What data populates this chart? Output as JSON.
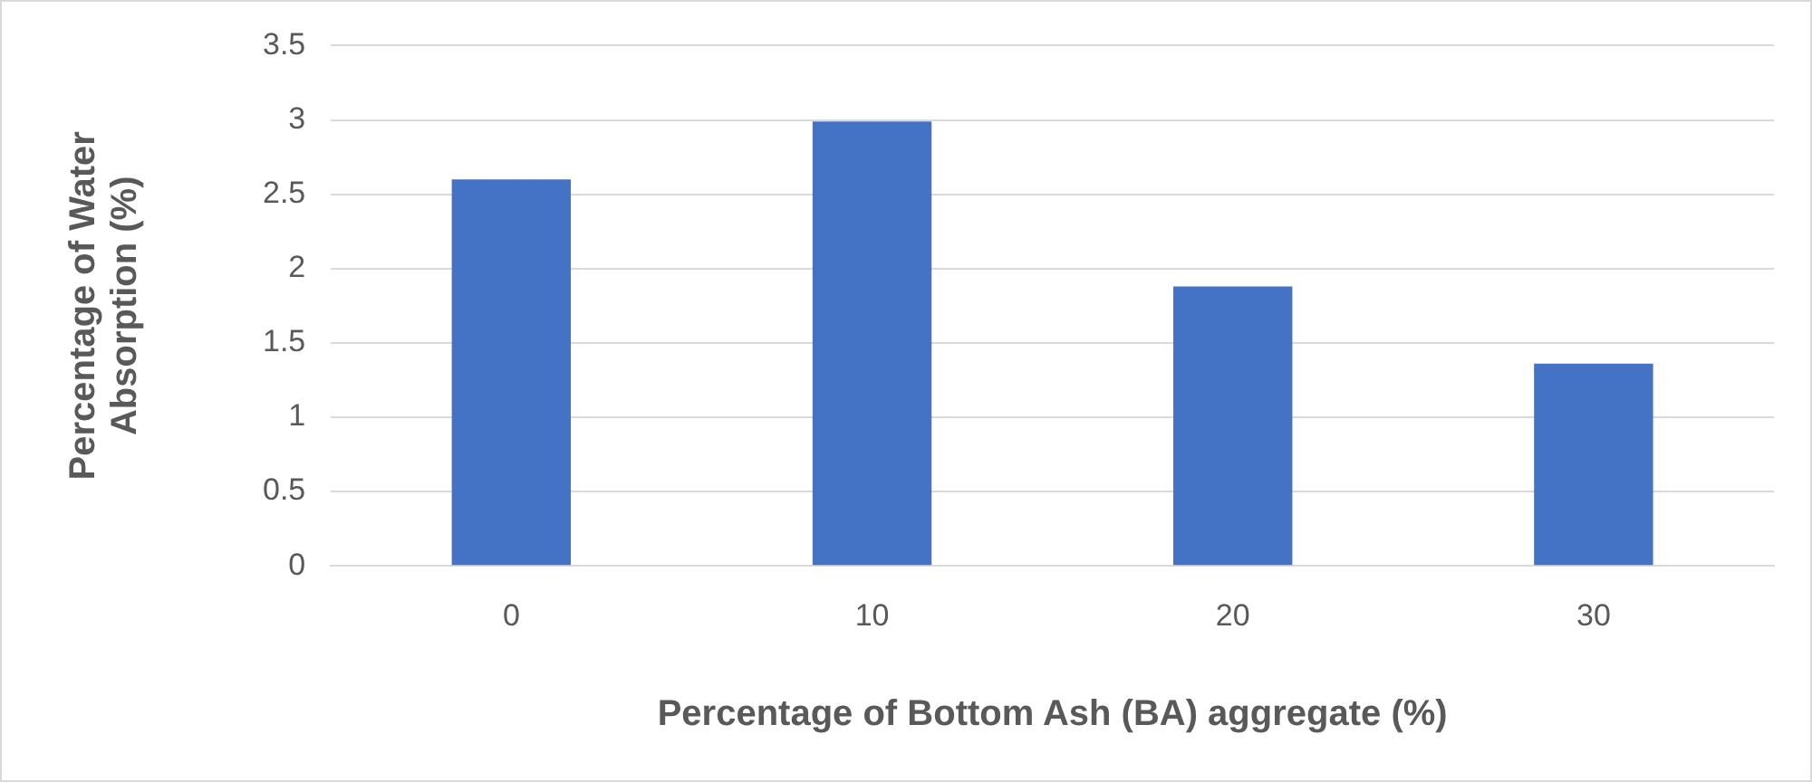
{
  "chart_data": {
    "type": "bar",
    "xlabel": "Percentage of Bottom Ash (BA) aggregate (%)",
    "ylabel": "Percentage of Water Absorption (%)",
    "categories": [
      "0",
      "10",
      "20",
      "30"
    ],
    "values": [
      2.6,
      2.99,
      1.88,
      1.36
    ],
    "color": "#4472c4",
    "ylim": [
      0,
      3.5
    ],
    "yticks": [
      0,
      0.5,
      1,
      1.5,
      2,
      2.5,
      3,
      3.5
    ],
    "grid": "y",
    "legend": false
  }
}
